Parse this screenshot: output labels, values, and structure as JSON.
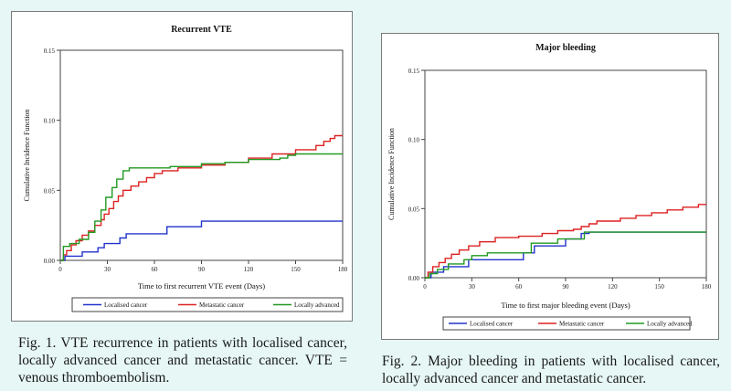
{
  "colors": {
    "localised": "#2233cc",
    "metastatic": "#dd2222",
    "locally_advanced": "#229922",
    "page_bg": "#e6f7f5"
  },
  "captions": {
    "fig1": "Fig. 1. VTE recurrence in patients with localised cancer, locally advanced cancer and metastatic cancer. VTE = venous thromboembolism.",
    "fig2": "Fig. 2. Major bleeding in patients with localised cancer, locally advanced cancer and metastatic cancer."
  },
  "chart_data": [
    {
      "type": "line",
      "step": true,
      "title": "Recurrent VTE",
      "xlabel": "Time to first recurrent VTE event (Days)",
      "ylabel": "Cumulative Incidence Function",
      "xlim": [
        0,
        180
      ],
      "ylim": [
        0,
        0.15
      ],
      "xticks": [
        0,
        30,
        60,
        90,
        120,
        150,
        180
      ],
      "yticks": [
        0.0,
        0.05,
        0.1,
        0.15
      ],
      "ytick_labels": [
        "0.00",
        "0.05",
        "0.10",
        "0.15"
      ],
      "legend": [
        "Localised cancer",
        "Metastatic cancer",
        "Locally advanced"
      ],
      "series": [
        {
          "name": "Localised cancer",
          "x": [
            0,
            3,
            14,
            24,
            28,
            38,
            42,
            60,
            68,
            90,
            180
          ],
          "values": [
            0,
            0.003,
            0.006,
            0.009,
            0.012,
            0.016,
            0.019,
            0.019,
            0.024,
            0.028,
            0.028
          ]
        },
        {
          "name": "Metastatic cancer",
          "x": [
            0,
            2,
            4,
            7,
            10,
            14,
            18,
            22,
            26,
            28,
            31,
            34,
            37,
            40,
            45,
            50,
            55,
            60,
            65,
            75,
            90,
            105,
            120,
            135,
            150,
            163,
            168,
            172,
            175,
            180
          ],
          "values": [
            0,
            0.004,
            0.007,
            0.011,
            0.014,
            0.018,
            0.021,
            0.025,
            0.029,
            0.033,
            0.037,
            0.042,
            0.046,
            0.05,
            0.053,
            0.056,
            0.059,
            0.062,
            0.064,
            0.066,
            0.068,
            0.07,
            0.073,
            0.076,
            0.079,
            0.082,
            0.085,
            0.087,
            0.089,
            0.089
          ]
        },
        {
          "name": "Locally advanced",
          "x": [
            0,
            2,
            6,
            12,
            18,
            22,
            26,
            29,
            33,
            36,
            40,
            44,
            60,
            70,
            90,
            105,
            120,
            140,
            145,
            150,
            180
          ],
          "values": [
            0,
            0.01,
            0.012,
            0.015,
            0.02,
            0.028,
            0.036,
            0.045,
            0.052,
            0.058,
            0.064,
            0.066,
            0.066,
            0.067,
            0.069,
            0.07,
            0.072,
            0.073,
            0.075,
            0.076,
            0.076
          ]
        }
      ]
    },
    {
      "type": "line",
      "step": true,
      "title": "Major bleeding",
      "xlabel": "Time to first major bleeding event (Days)",
      "ylabel": "Cumulative Incidence Function",
      "xlim": [
        0,
        180
      ],
      "ylim": [
        0,
        0.15
      ],
      "xticks": [
        0,
        30,
        60,
        90,
        120,
        150,
        180
      ],
      "yticks": [
        0.0,
        0.05,
        0.1,
        0.15
      ],
      "ytick_labels": [
        "0.00",
        "0.05",
        "0.10",
        "0.15"
      ],
      "legend": [
        "Localised cancer",
        "Metastatic cancer",
        "Locally advanced"
      ],
      "series": [
        {
          "name": "Localised cancer",
          "x": [
            0,
            4,
            12,
            28,
            60,
            63,
            70,
            90,
            100,
            105,
            180
          ],
          "values": [
            0,
            0.004,
            0.008,
            0.013,
            0.013,
            0.018,
            0.023,
            0.028,
            0.032,
            0.033,
            0.033
          ]
        },
        {
          "name": "Metastatic cancer",
          "x": [
            0,
            2,
            5,
            9,
            13,
            17,
            22,
            28,
            35,
            45,
            60,
            75,
            85,
            95,
            100,
            105,
            110,
            125,
            135,
            145,
            155,
            165,
            175,
            180
          ],
          "values": [
            0,
            0.004,
            0.008,
            0.011,
            0.014,
            0.017,
            0.02,
            0.023,
            0.026,
            0.029,
            0.03,
            0.032,
            0.034,
            0.035,
            0.037,
            0.039,
            0.041,
            0.043,
            0.045,
            0.047,
            0.049,
            0.051,
            0.053,
            0.053
          ]
        },
        {
          "name": "Locally advanced",
          "x": [
            0,
            3,
            8,
            15,
            25,
            30,
            40,
            62,
            68,
            85,
            102,
            180
          ],
          "values": [
            0,
            0.003,
            0.006,
            0.01,
            0.013,
            0.016,
            0.018,
            0.018,
            0.025,
            0.028,
            0.033,
            0.033
          ]
        }
      ]
    }
  ]
}
